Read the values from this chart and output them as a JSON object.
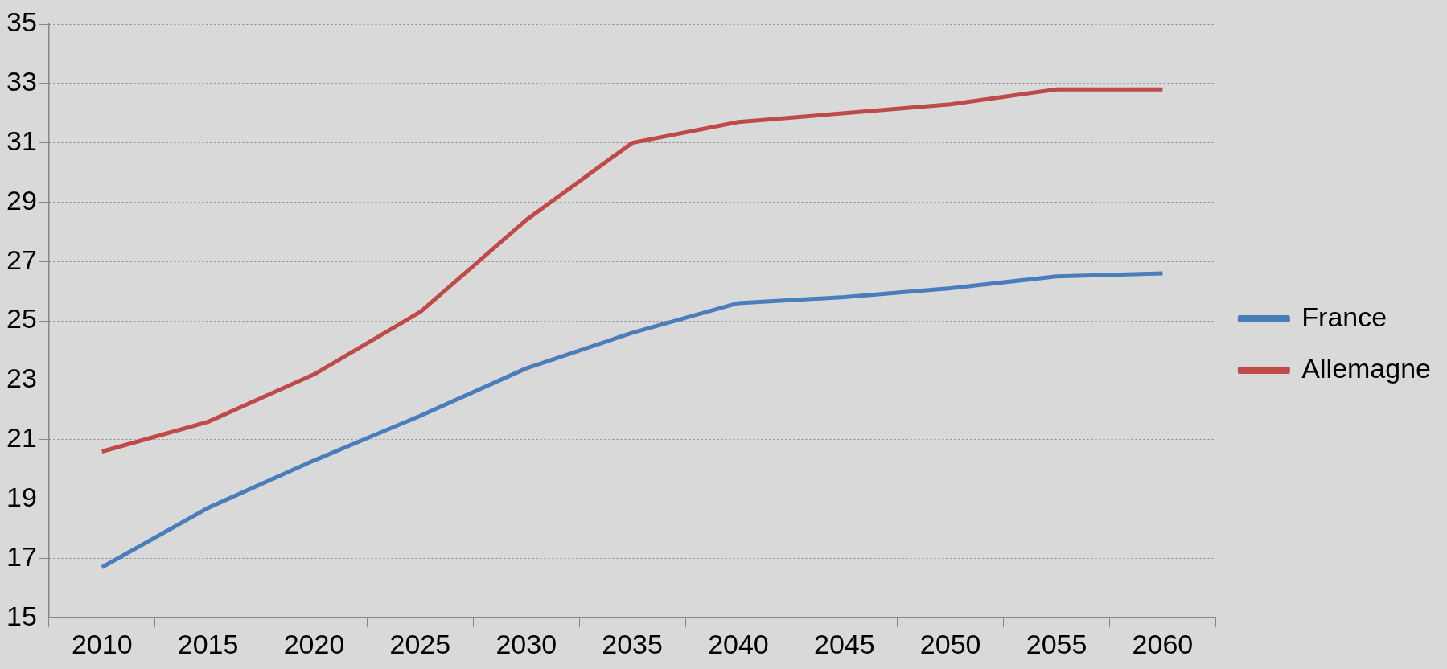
{
  "chart_data": {
    "type": "line",
    "categories": [
      "2010",
      "2015",
      "2020",
      "2025",
      "2030",
      "2035",
      "2040",
      "2045",
      "2050",
      "2055",
      "2060"
    ],
    "series": [
      {
        "name": "France",
        "color": "#4a7ebb",
        "values": [
          16.7,
          18.7,
          20.3,
          21.8,
          23.4,
          24.6,
          25.6,
          25.8,
          26.1,
          26.5,
          26.6
        ]
      },
      {
        "name": "Allemagne",
        "color": "#be4b48",
        "values": [
          20.6,
          21.6,
          23.2,
          25.3,
          28.4,
          31.0,
          31.7,
          32.0,
          32.3,
          32.8,
          32.8
        ]
      }
    ],
    "ylim": [
      15,
      35
    ],
    "yticks": [
      15,
      17,
      19,
      21,
      23,
      25,
      27,
      29,
      31,
      33,
      35
    ],
    "grid": "y",
    "legend": "right",
    "marker": "none"
  }
}
